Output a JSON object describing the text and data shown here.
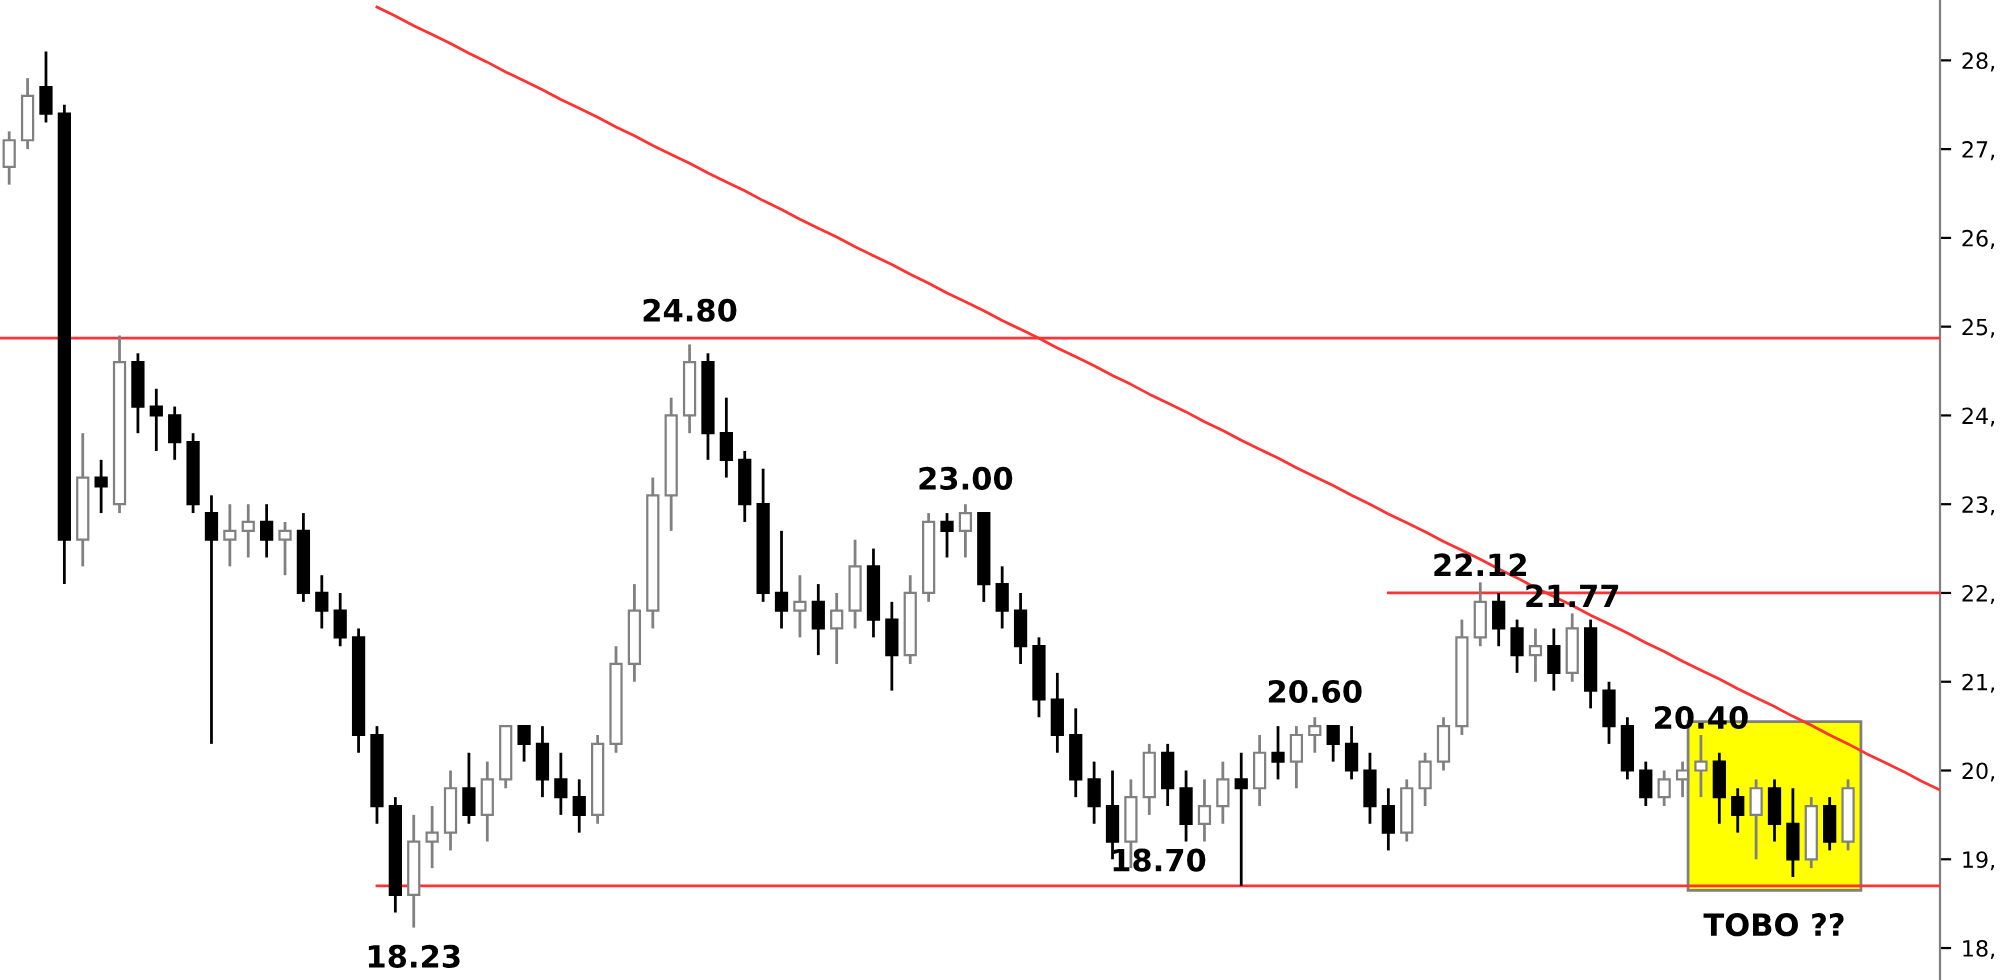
{
  "chart_data": {
    "type": "candlestick",
    "categories": [
      null,
      null,
      null,
      null,
      null,
      null,
      null,
      null,
      null,
      null,
      null,
      null,
      null,
      null,
      null,
      null,
      null,
      null,
      null,
      null,
      null,
      null,
      null,
      null,
      null,
      null,
      null,
      null,
      null,
      null,
      null,
      null,
      null,
      null,
      null,
      null,
      null,
      null,
      null,
      null,
      null,
      null,
      null,
      null,
      null,
      null,
      null,
      null,
      null,
      null,
      null,
      null,
      null,
      null,
      null,
      null,
      null,
      null,
      null,
      null,
      null,
      null,
      null,
      null,
      null,
      null,
      null,
      null,
      null,
      null,
      null,
      null,
      null,
      null,
      null,
      null,
      null,
      null,
      null,
      null,
      null,
      null,
      null,
      null,
      null,
      null,
      null,
      null,
      null,
      null,
      null,
      null,
      null,
      null,
      null,
      null,
      null,
      null,
      null,
      null,
      null,
      null,
      null,
      null,
      null,
      null
    ],
    "ohlc": [
      [
        26.8,
        27.2,
        26.6,
        27.1
      ],
      [
        27.1,
        27.8,
        27.0,
        27.6
      ],
      [
        27.7,
        28.1,
        27.3,
        27.4
      ],
      [
        27.4,
        27.5,
        22.1,
        22.6
      ],
      [
        22.6,
        23.8,
        22.3,
        23.3
      ],
      [
        23.3,
        23.5,
        22.9,
        23.2
      ],
      [
        23.0,
        24.9,
        22.9,
        24.6
      ],
      [
        24.6,
        24.7,
        23.8,
        24.1
      ],
      [
        24.1,
        24.3,
        23.6,
        24.0
      ],
      [
        24.0,
        24.1,
        23.5,
        23.7
      ],
      [
        23.7,
        23.8,
        22.9,
        23.0
      ],
      [
        22.9,
        23.1,
        20.3,
        22.6
      ],
      [
        22.6,
        23.0,
        22.3,
        22.7
      ],
      [
        22.7,
        23.0,
        22.4,
        22.8
      ],
      [
        22.8,
        23.0,
        22.4,
        22.6
      ],
      [
        22.6,
        22.8,
        22.2,
        22.7
      ],
      [
        22.7,
        22.9,
        21.9,
        22.0
      ],
      [
        22.0,
        22.2,
        21.6,
        21.8
      ],
      [
        21.8,
        22.0,
        21.4,
        21.5
      ],
      [
        21.5,
        21.6,
        20.2,
        20.4
      ],
      [
        20.4,
        20.5,
        19.4,
        19.6
      ],
      [
        19.6,
        19.7,
        18.4,
        18.6
      ],
      [
        18.6,
        19.5,
        18.23,
        19.2
      ],
      [
        19.2,
        19.6,
        18.9,
        19.3
      ],
      [
        19.3,
        20.0,
        19.1,
        19.8
      ],
      [
        19.8,
        20.2,
        19.4,
        19.5
      ],
      [
        19.5,
        20.1,
        19.2,
        19.9
      ],
      [
        19.9,
        20.5,
        19.8,
        20.5
      ],
      [
        20.5,
        20.5,
        20.1,
        20.3
      ],
      [
        20.3,
        20.5,
        19.7,
        19.9
      ],
      [
        19.9,
        20.2,
        19.5,
        19.7
      ],
      [
        19.7,
        19.9,
        19.3,
        19.5
      ],
      [
        19.5,
        20.4,
        19.4,
        20.3
      ],
      [
        20.3,
        21.4,
        20.2,
        21.2
      ],
      [
        21.2,
        22.1,
        21.0,
        21.8
      ],
      [
        21.8,
        23.3,
        21.6,
        23.1
      ],
      [
        23.1,
        24.2,
        22.7,
        24.0
      ],
      [
        24.0,
        24.8,
        23.8,
        24.6
      ],
      [
        24.6,
        24.7,
        23.5,
        23.8
      ],
      [
        23.8,
        24.2,
        23.3,
        23.5
      ],
      [
        23.5,
        23.6,
        22.8,
        23.0
      ],
      [
        23.0,
        23.4,
        21.9,
        22.0
      ],
      [
        22.0,
        22.7,
        21.6,
        21.8
      ],
      [
        21.8,
        22.2,
        21.5,
        21.9
      ],
      [
        21.9,
        22.1,
        21.3,
        21.6
      ],
      [
        21.6,
        22.0,
        21.2,
        21.8
      ],
      [
        21.8,
        22.6,
        21.6,
        22.3
      ],
      [
        22.3,
        22.5,
        21.5,
        21.7
      ],
      [
        21.7,
        21.9,
        20.9,
        21.3
      ],
      [
        21.3,
        22.2,
        21.2,
        22.0
      ],
      [
        22.0,
        22.9,
        21.9,
        22.8
      ],
      [
        22.8,
        22.9,
        22.4,
        22.7
      ],
      [
        22.7,
        23.0,
        22.4,
        22.9
      ],
      [
        22.9,
        22.9,
        21.9,
        22.1
      ],
      [
        22.1,
        22.3,
        21.6,
        21.8
      ],
      [
        21.8,
        22.0,
        21.2,
        21.4
      ],
      [
        21.4,
        21.5,
        20.6,
        20.8
      ],
      [
        20.8,
        21.1,
        20.2,
        20.4
      ],
      [
        20.4,
        20.7,
        19.7,
        19.9
      ],
      [
        19.9,
        20.1,
        19.4,
        19.6
      ],
      [
        19.6,
        20.0,
        19.0,
        19.2
      ],
      [
        19.2,
        19.9,
        18.9,
        19.7
      ],
      [
        19.7,
        20.3,
        19.5,
        20.2
      ],
      [
        20.2,
        20.3,
        19.6,
        19.8
      ],
      [
        19.8,
        20.0,
        19.2,
        19.4
      ],
      [
        19.4,
        19.9,
        19.2,
        19.6
      ],
      [
        19.6,
        20.1,
        19.4,
        19.9
      ],
      [
        19.9,
        20.2,
        18.7,
        19.8
      ],
      [
        19.8,
        20.4,
        19.6,
        20.2
      ],
      [
        20.2,
        20.5,
        19.9,
        20.1
      ],
      [
        20.1,
        20.5,
        19.8,
        20.4
      ],
      [
        20.4,
        20.6,
        20.2,
        20.5
      ],
      [
        20.5,
        20.5,
        20.1,
        20.3
      ],
      [
        20.3,
        20.5,
        19.9,
        20.0
      ],
      [
        20.0,
        20.2,
        19.4,
        19.6
      ],
      [
        19.6,
        19.8,
        19.1,
        19.3
      ],
      [
        19.3,
        19.9,
        19.2,
        19.8
      ],
      [
        19.8,
        20.2,
        19.6,
        20.1
      ],
      [
        20.1,
        20.6,
        20.0,
        20.5
      ],
      [
        20.5,
        21.7,
        20.4,
        21.5
      ],
      [
        21.5,
        22.12,
        21.4,
        21.9
      ],
      [
        21.9,
        22.0,
        21.4,
        21.6
      ],
      [
        21.6,
        21.7,
        21.1,
        21.3
      ],
      [
        21.3,
        21.6,
        21.0,
        21.4
      ],
      [
        21.4,
        21.6,
        20.9,
        21.1
      ],
      [
        21.1,
        21.77,
        21.0,
        21.6
      ],
      [
        21.6,
        21.7,
        20.7,
        20.9
      ],
      [
        20.9,
        21.0,
        20.3,
        20.5
      ],
      [
        20.5,
        20.6,
        19.9,
        20.0
      ],
      [
        20.0,
        20.1,
        19.6,
        19.7
      ],
      [
        19.7,
        20.0,
        19.6,
        19.9
      ],
      [
        19.9,
        20.1,
        19.7,
        20.0
      ],
      [
        20.0,
        20.4,
        19.7,
        20.1
      ],
      [
        20.1,
        20.2,
        19.4,
        19.7
      ],
      [
        19.7,
        19.8,
        19.3,
        19.5
      ],
      [
        19.5,
        19.9,
        19.0,
        19.8
      ],
      [
        19.8,
        19.9,
        19.2,
        19.4
      ],
      [
        19.4,
        19.8,
        18.8,
        19.0
      ],
      [
        19.0,
        19.7,
        18.9,
        19.6
      ],
      [
        19.6,
        19.7,
        19.1,
        19.2
      ],
      [
        19.2,
        19.9,
        19.1,
        19.8
      ],
      null,
      null,
      null,
      null,
      null
    ],
    "series": [
      {
        "type": "line",
        "color": "#ff3333",
        "values": [
          null,
          null,
          null,
          null,
          null,
          null,
          null,
          null,
          null,
          null,
          null,
          null,
          null,
          null,
          null,
          null,
          null,
          null,
          null,
          null,
          28.6,
          28.5,
          28.39,
          28.29,
          28.19,
          28.08,
          27.98,
          27.87,
          27.77,
          27.67,
          27.56,
          27.46,
          27.36,
          27.25,
          27.15,
          27.04,
          26.94,
          26.84,
          26.73,
          26.63,
          26.53,
          26.42,
          26.32,
          26.21,
          26.11,
          26.01,
          25.9,
          25.8,
          25.7,
          25.59,
          25.49,
          25.38,
          25.28,
          25.18,
          25.07,
          24.97,
          24.87,
          24.76,
          24.66,
          24.56,
          24.45,
          24.35,
          24.24,
          24.14,
          24.04,
          23.93,
          23.83,
          23.72,
          23.62,
          23.52,
          23.41,
          23.31,
          23.21,
          23.1,
          23.0,
          22.89,
          22.79,
          22.69,
          22.58,
          22.48,
          22.38,
          22.27,
          22.17,
          22.06,
          21.96,
          21.86,
          21.75,
          21.65,
          21.55,
          21.44,
          21.34,
          21.23,
          21.13,
          21.03,
          20.92,
          20.82,
          20.72,
          20.61,
          20.51,
          20.4,
          20.3,
          20.19,
          20.09,
          19.99,
          19.88,
          19.78
        ]
      },
      {
        "type": "line",
        "color": "#ff3333",
        "values": [
          null,
          null,
          null,
          null,
          null,
          null,
          null,
          null,
          null,
          null,
          null,
          null,
          null,
          null,
          null,
          null,
          null,
          null,
          null,
          null,
          null,
          null,
          null,
          null,
          null,
          null,
          null,
          null,
          null,
          null,
          null,
          null,
          null,
          null,
          null,
          null,
          null,
          null,
          null,
          null,
          null,
          null,
          null,
          null,
          null,
          null,
          null,
          null,
          null,
          null,
          null,
          null,
          null,
          null,
          null,
          null,
          null,
          null,
          null,
          null,
          null,
          null,
          null,
          null,
          null,
          null,
          null,
          null,
          null,
          null,
          null,
          null,
          null,
          null,
          null,
          22,
          22,
          22,
          22,
          22,
          22,
          22,
          22,
          22,
          22,
          22,
          22,
          22,
          22,
          22,
          22,
          22,
          22,
          22,
          22,
          22,
          22,
          22,
          22,
          22,
          22,
          22,
          22,
          22,
          22,
          22
        ]
      },
      {
        "type": "line",
        "color": "#ff3333",
        "values": [
          null,
          null,
          null,
          null,
          null,
          null,
          null,
          null,
          null,
          null,
          null,
          null,
          null,
          null,
          null,
          null,
          null,
          null,
          null,
          null,
          18.7,
          18.7,
          18.7,
          18.7,
          18.7,
          18.7,
          18.7,
          18.7,
          18.7,
          18.7,
          18.7,
          18.7,
          18.7,
          18.7,
          18.7,
          18.7,
          18.7,
          18.7,
          18.7,
          18.7,
          18.7,
          18.7,
          18.7,
          18.7,
          18.7,
          18.7,
          18.7,
          18.7,
          18.7,
          18.7,
          18.7,
          18.7,
          18.7,
          18.7,
          18.7,
          18.7,
          18.7,
          18.7,
          18.7,
          18.7,
          18.7,
          18.7,
          18.7,
          18.7,
          18.7,
          18.7,
          18.7,
          18.7,
          18.7,
          18.7,
          18.7,
          18.7,
          18.7,
          18.7,
          18.7,
          18.7,
          18.7,
          18.7,
          18.7,
          18.7,
          18.7,
          18.7,
          18.7,
          18.7,
          18.7,
          18.7,
          18.7,
          18.7,
          18.7,
          18.7,
          18.7,
          18.7,
          18.7,
          18.7,
          18.7,
          18.7,
          18.7,
          18.7,
          18.7,
          18.7,
          18.7,
          18.7,
          18.7,
          18.7,
          18.7,
          18.7
        ]
      }
    ],
    "ref_lines": [
      {
        "axis": "y",
        "value": 24.87,
        "color": "#ff3333"
      }
    ],
    "annotations": [
      {
        "text": "24.80",
        "y": 24.8
      },
      {
        "text": "18.23",
        "y": 18.23
      },
      {
        "text": "23.00",
        "y": 23.0
      },
      {
        "text": "20.60",
        "y": 20.6
      },
      {
        "text": "22.12",
        "y": 22.12
      },
      {
        "text": "21.77",
        "y": 21.77
      },
      {
        "text": "20.40",
        "y": 20.4
      },
      {
        "text": "18.70",
        "y": 18.7
      },
      "TOBO ??"
    ],
    "ylim": [
      17.64,
      28.68
    ],
    "yticks": [
      {
        "value": 18,
        "label": "18,"
      },
      {
        "value": 19,
        "label": "19,"
      },
      {
        "value": 20,
        "label": "20,"
      },
      {
        "value": 21,
        "label": "21,"
      },
      {
        "value": 22,
        "label": "22,"
      },
      {
        "value": 23,
        "label": "23,"
      },
      {
        "value": 24,
        "label": "24,"
      },
      {
        "value": 25,
        "label": "25,"
      },
      {
        "value": 26,
        "label": "26,"
      },
      {
        "value": 27,
        "label": "27,"
      },
      {
        "value": 28,
        "label": "28,"
      }
    ],
    "tick_labels": "y",
    "grid": false,
    "legend": false
  }
}
